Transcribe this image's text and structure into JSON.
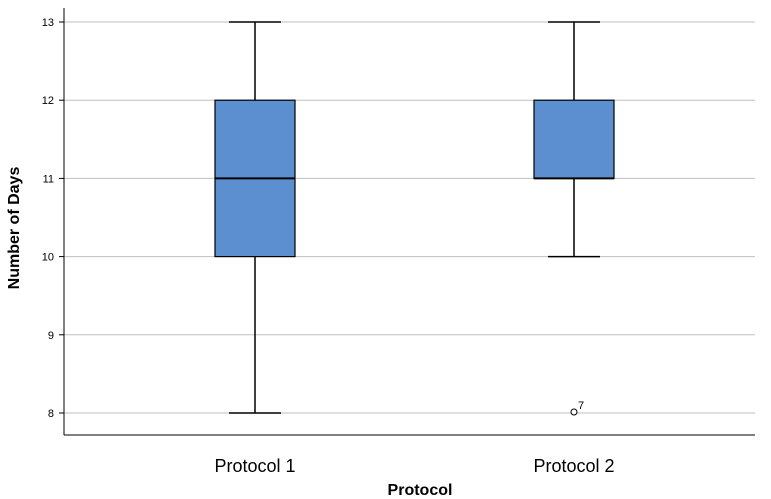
{
  "chart_data": {
    "type": "box",
    "title": "",
    "xlabel": "Protocol",
    "ylabel": "Number of Days",
    "ylim": [
      8,
      13
    ],
    "yticks": [
      8,
      9,
      10,
      11,
      12,
      13
    ],
    "grid": true,
    "categories": [
      "Protocol 1",
      "Protocol 2"
    ],
    "boxes": [
      {
        "category": "Protocol 1",
        "min": 8,
        "q1": 10,
        "median": 11,
        "q3": 12,
        "max": 13,
        "outliers": []
      },
      {
        "category": "Protocol 2",
        "min": 10,
        "q1": 11,
        "median": 11,
        "q3": 12,
        "max": 13,
        "outliers": [
          {
            "value": 8,
            "label": "7"
          }
        ]
      }
    ],
    "colors": {
      "box_fill": "#5B8FD0",
      "gridline": "#BFBFBF"
    }
  }
}
